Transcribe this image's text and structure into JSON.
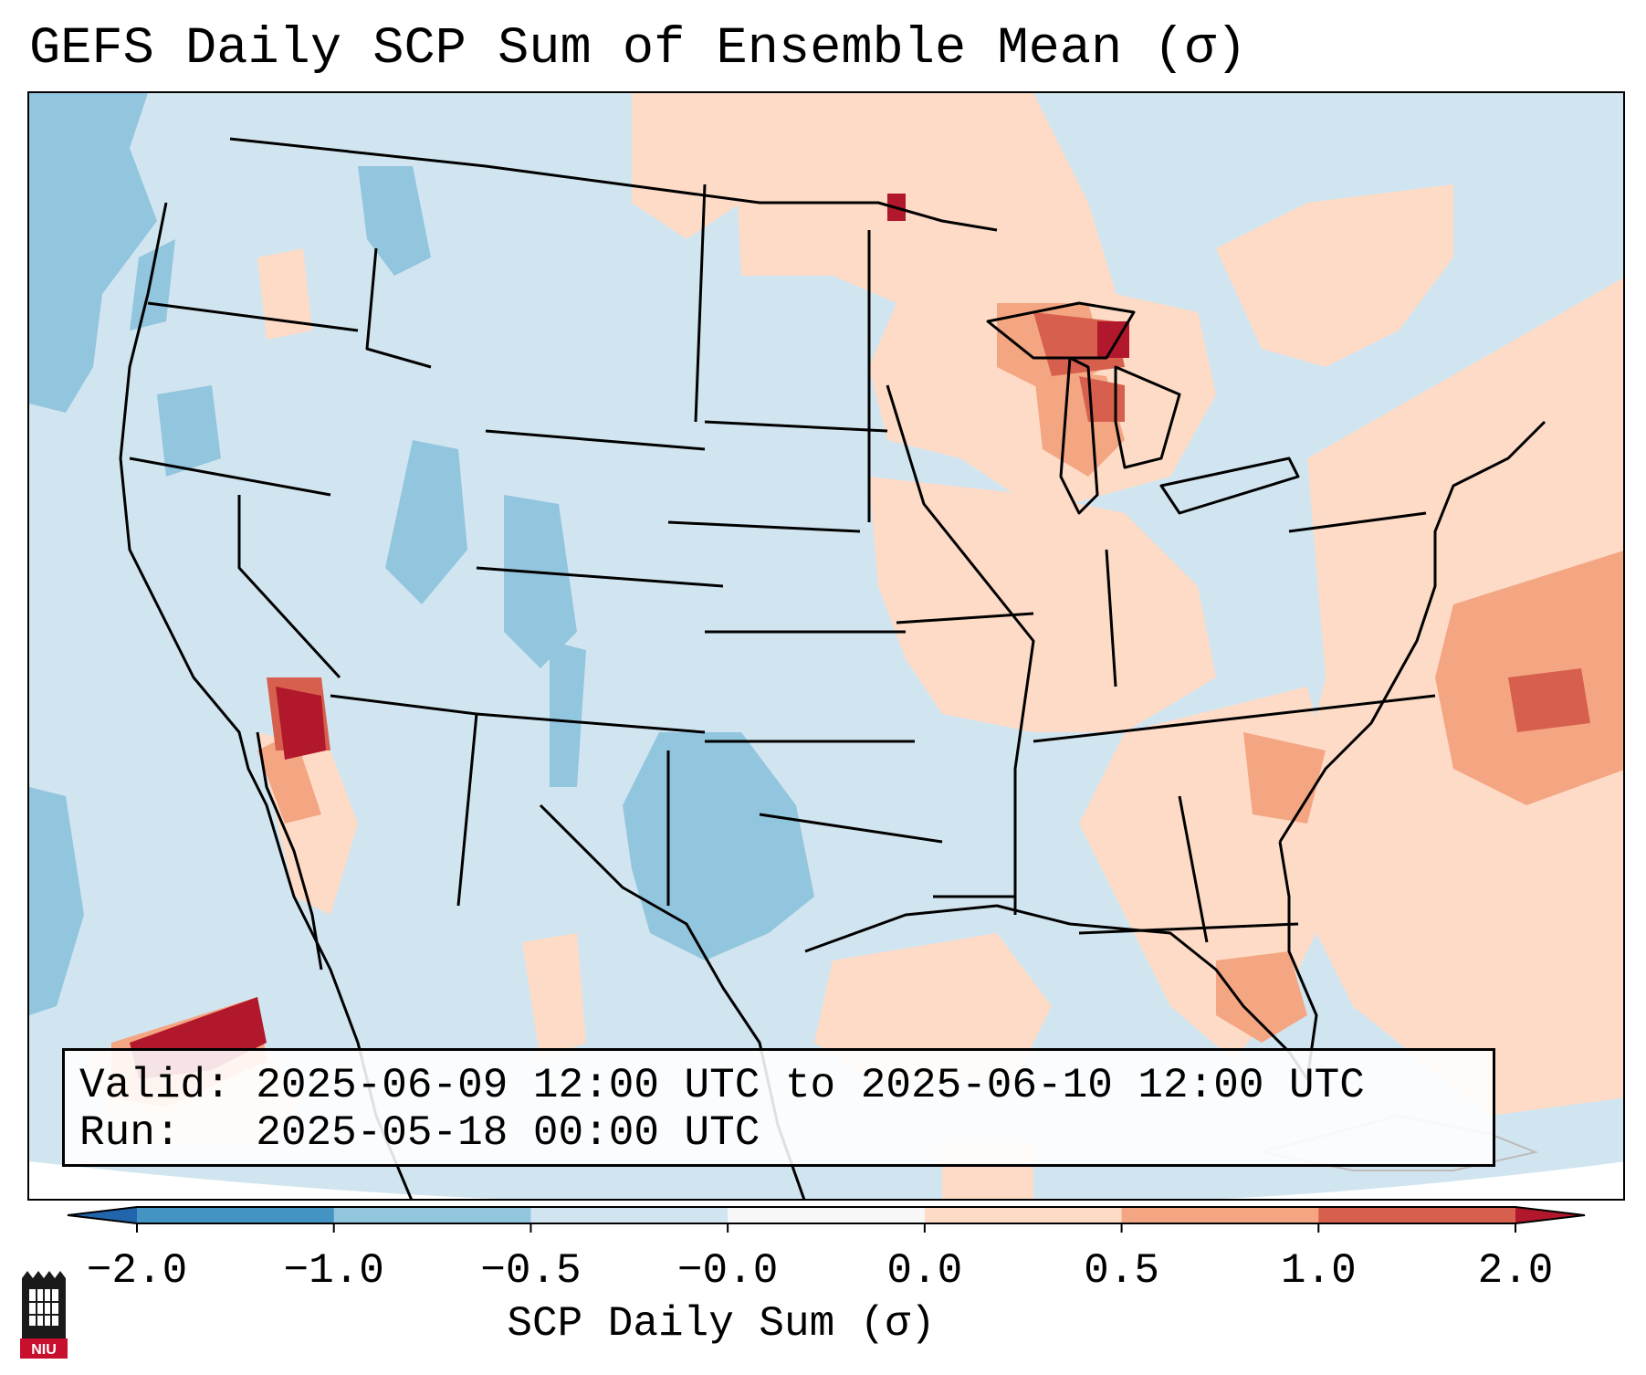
{
  "title": "GEFS Daily SCP Sum of Ensemble Mean (σ)",
  "info": {
    "valid_label": "Valid:",
    "valid_value": "2025-06-09 12:00 UTC to 2025-06-10 12:00 UTC",
    "run_label": "Run:",
    "run_value": "2025-05-18 00:00 UTC"
  },
  "colorbar": {
    "label": "SCP Daily Sum (σ)",
    "tick_labels": [
      "−2.0",
      "−1.0",
      "−0.5",
      "−0.0",
      "0.0",
      "0.5",
      "1.0",
      "2.0"
    ],
    "colors": [
      "#2166ac",
      "#4393c3",
      "#92c5de",
      "#d1e5f0",
      "#f7f7f7",
      "#fddbc7",
      "#f4a582",
      "#d6604d",
      "#b2182b"
    ]
  },
  "logo": {
    "text": "NIU",
    "color": "#c8102e"
  }
}
